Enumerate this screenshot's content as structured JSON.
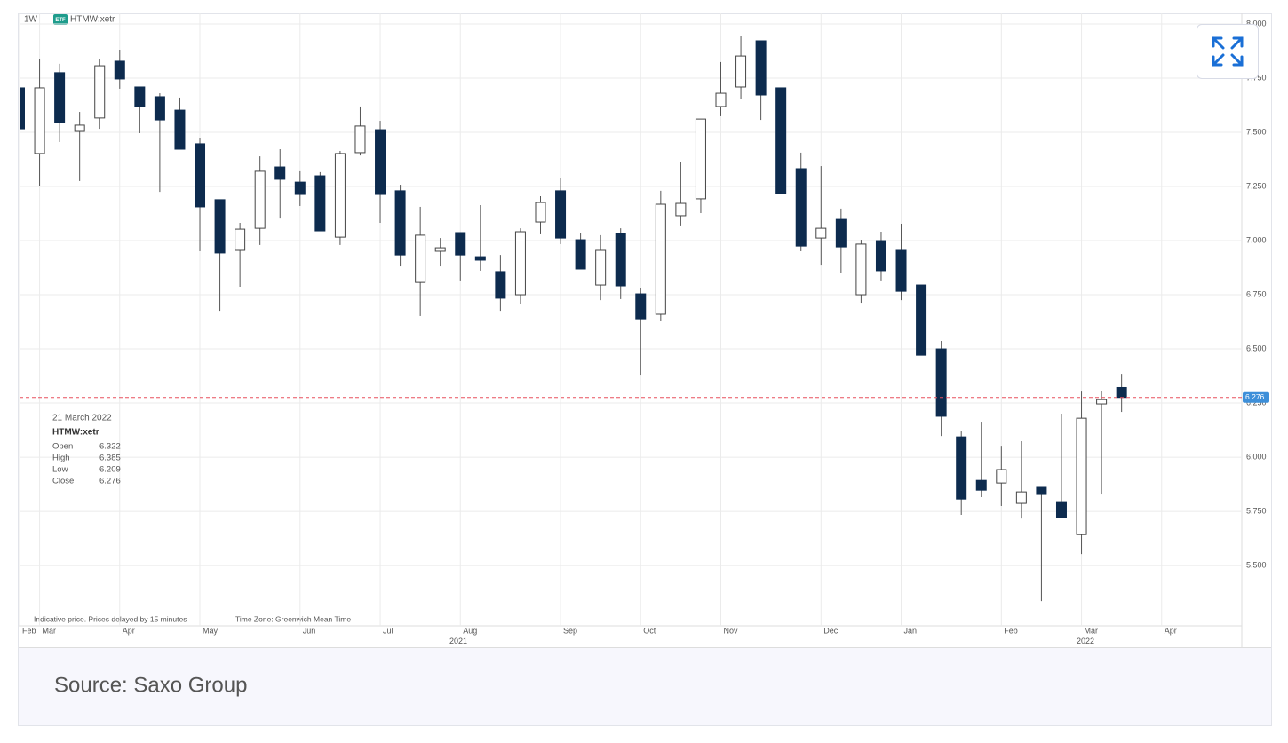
{
  "chart_data": {
    "type": "candlestick",
    "interval": "1W",
    "badge": "ETF",
    "symbol": "HTMW:xetr",
    "info_date": "21 March 2022",
    "ohlc_labels": [
      "Open",
      "High",
      "Low",
      "Close"
    ],
    "note": "Indicative price. Prices delayed by 15 minutes",
    "timezone": "Time Zone: Greenwich Mean Time",
    "categories": [
      null,
      null,
      null,
      null,
      null,
      null,
      null,
      null,
      null,
      null,
      null,
      null,
      null,
      null,
      null,
      null,
      null,
      null,
      null,
      null,
      null,
      null,
      null,
      null,
      null,
      null,
      null,
      null,
      null,
      null,
      null,
      null,
      null,
      null,
      null,
      null,
      null,
      null,
      null,
      null,
      null,
      null,
      null,
      null,
      null,
      null,
      null,
      null,
      null,
      null,
      null,
      null,
      null,
      null,
      null,
      null
    ],
    "open": [
      7.705,
      7.402,
      7.775,
      7.504,
      7.566,
      7.828,
      7.709,
      7.664,
      7.602,
      7.447,
      7.189,
      6.955,
      7.057,
      7.34,
      7.27,
      7.299,
      7.016,
      7.406,
      7.512,
      7.23,
      6.807,
      6.951,
      7.037,
      6.926,
      6.857,
      6.75,
      7.086,
      7.23,
      7.004,
      6.795,
      7.033,
      6.754,
      6.66,
      7.115,
      7.193,
      7.619,
      7.709,
      7.922,
      7.705,
      7.332,
      7.012,
      7.098,
      6.75,
      7.0,
      6.955,
      6.795,
      6.5,
      6.094,
      5.893,
      5.881,
      5.787,
      5.861,
      5.795,
      5.643,
      6.246,
      6.322
    ],
    "high": [
      7.734,
      7.836,
      7.816,
      7.594,
      7.84,
      7.881,
      7.709,
      7.68,
      7.66,
      7.475,
      7.189,
      7.082,
      7.389,
      7.422,
      7.32,
      7.316,
      7.414,
      7.619,
      7.553,
      7.258,
      7.156,
      7.012,
      7.037,
      7.164,
      6.934,
      7.057,
      7.205,
      7.291,
      7.037,
      7.025,
      7.057,
      6.783,
      7.23,
      7.361,
      7.561,
      7.824,
      7.943,
      7.922,
      7.705,
      7.406,
      7.344,
      7.148,
      7.004,
      7.041,
      7.078,
      6.795,
      6.537,
      6.119,
      6.164,
      6.053,
      6.074,
      5.861,
      6.201,
      6.303,
      6.307,
      6.385
    ],
    "low": [
      7.406,
      7.25,
      7.455,
      7.275,
      7.516,
      7.701,
      7.496,
      7.225,
      7.422,
      6.951,
      6.676,
      6.787,
      6.98,
      7.102,
      7.16,
      7.045,
      6.98,
      7.393,
      7.082,
      6.881,
      6.652,
      6.881,
      6.816,
      6.861,
      6.676,
      6.709,
      7.029,
      6.984,
      6.869,
      6.725,
      6.73,
      6.377,
      6.627,
      7.066,
      7.127,
      7.574,
      7.652,
      7.557,
      7.217,
      6.951,
      6.885,
      6.852,
      6.713,
      6.816,
      6.725,
      6.471,
      6.098,
      5.734,
      5.816,
      5.775,
      5.717,
      5.336,
      5.721,
      5.553,
      5.828,
      6.209
    ],
    "close": [
      7.516,
      7.705,
      7.545,
      7.533,
      7.807,
      7.746,
      7.619,
      7.557,
      7.422,
      7.156,
      6.943,
      7.053,
      7.32,
      7.283,
      7.213,
      7.045,
      7.402,
      7.529,
      7.213,
      6.934,
      7.025,
      6.967,
      6.934,
      6.91,
      6.734,
      7.041,
      7.176,
      7.012,
      6.869,
      6.955,
      6.791,
      6.639,
      7.168,
      7.172,
      7.561,
      7.68,
      7.852,
      7.672,
      7.217,
      6.975,
      7.057,
      6.971,
      6.984,
      6.861,
      6.766,
      6.471,
      6.189,
      5.807,
      5.848,
      5.943,
      5.84,
      5.828,
      5.721,
      6.18,
      6.266,
      6.276
    ],
    "color_up": "#ffffff",
    "color_down": "#0d2b4e",
    "wick_color": "#555555",
    "last_price_color": "#e8505f",
    "price_tag_color": "#3d8fd9",
    "ylim": [
      5.23,
      8.049
    ],
    "yticks": [
      {
        "value": 5.5,
        "label": "5.500"
      },
      {
        "value": 5.75,
        "label": "5.750"
      },
      {
        "value": 6,
        "label": "6.000"
      },
      {
        "value": 6.25,
        "label": "6.250"
      },
      {
        "value": 6.5,
        "label": "6.500"
      },
      {
        "value": 6.75,
        "label": "6.750"
      },
      {
        "value": 7,
        "label": "7.000"
      },
      {
        "value": 7.25,
        "label": "7.250"
      },
      {
        "value": 7.5,
        "label": "7.500"
      },
      {
        "value": 7.75,
        "label": "7.750"
      },
      {
        "value": 8,
        "label": "8.000"
      }
    ],
    "xlim": [
      0,
      61
    ],
    "xticks": [
      {
        "value": 0,
        "label": "Feb"
      },
      {
        "value": 1,
        "label": "Mar"
      },
      {
        "value": 5,
        "label": "Apr"
      },
      {
        "value": 9,
        "label": "May"
      },
      {
        "value": 14,
        "label": "Jun"
      },
      {
        "value": 18,
        "label": "Jul"
      },
      {
        "value": 22,
        "label": "Aug"
      },
      {
        "value": 27,
        "label": "Sep"
      },
      {
        "value": 31,
        "label": "Oct"
      },
      {
        "value": 35,
        "label": "Nov"
      },
      {
        "value": 40,
        "label": "Dec"
      },
      {
        "value": 44,
        "label": "Jan"
      },
      {
        "value": 49,
        "label": "Feb"
      },
      {
        "value": 53,
        "label": "Mar"
      },
      {
        "value": 57,
        "label": "Apr"
      }
    ],
    "year_ticks": [
      {
        "value": 21.9,
        "label": "2021"
      },
      {
        "value": 53.2,
        "label": "2022"
      }
    ],
    "grid": true
  },
  "caption": "Source: Saxo Group"
}
